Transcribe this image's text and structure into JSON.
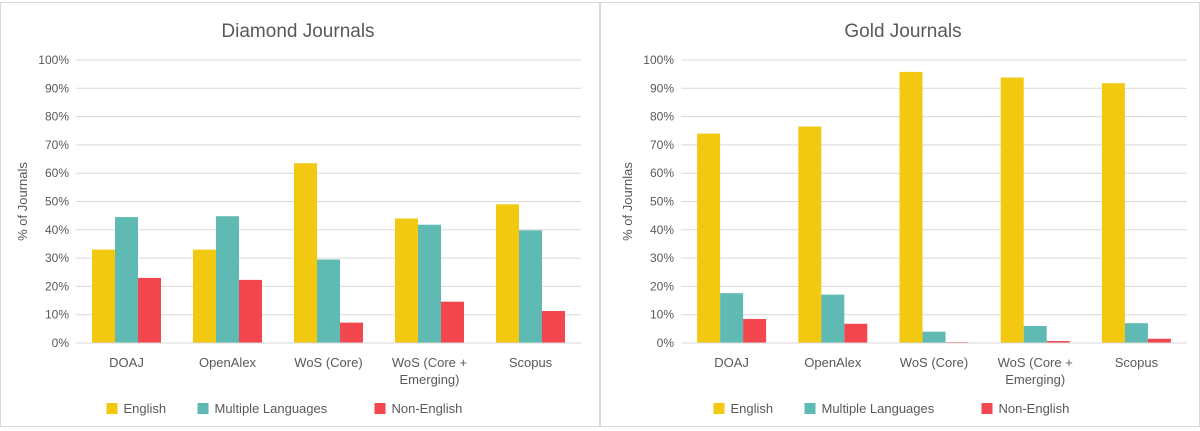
{
  "colors": {
    "english": "#f2c811",
    "multiple": "#5fbab3",
    "nonenglish": "#f2474f",
    "grid": "#d9d9d9",
    "text": "#595959"
  },
  "chart_data": [
    {
      "type": "bar",
      "title": "Diamond Journals",
      "ylabel": "% of Journals",
      "ylim": [
        0,
        100
      ],
      "yticks": [
        "0%",
        "10%",
        "20%",
        "30%",
        "40%",
        "50%",
        "60%",
        "70%",
        "80%",
        "90%",
        "100%"
      ],
      "categories": [
        [
          "DOAJ"
        ],
        [
          "OpenAlex"
        ],
        [
          "WoS (Core)"
        ],
        [
          "WoS (Core +",
          "Emerging)"
        ],
        [
          "Scopus"
        ]
      ],
      "series": [
        {
          "name": "English",
          "color": "#f2c811",
          "values": [
            33,
            33,
            63.5,
            44,
            49
          ]
        },
        {
          "name": "Multiple Languages",
          "color": "#5fbab3",
          "values": [
            44.5,
            44.8,
            29.5,
            41.8,
            39.8
          ]
        },
        {
          "name": "Non-English",
          "color": "#f2474f",
          "values": [
            23,
            22.3,
            7.2,
            14.6,
            11.3
          ]
        }
      ],
      "grid": true,
      "legend": "bottom"
    },
    {
      "type": "bar",
      "title": "Gold Journals",
      "ylabel": "% of Journlas",
      "ylim": [
        0,
        100
      ],
      "yticks": [
        "0%",
        "10%",
        "20%",
        "30%",
        "40%",
        "50%",
        "60%",
        "70%",
        "80%",
        "90%",
        "100%"
      ],
      "categories": [
        [
          "DOAJ"
        ],
        [
          "OpenAlex"
        ],
        [
          "WoS (Core)"
        ],
        [
          "WoS (Core +",
          "Emerging)"
        ],
        [
          "Scopus"
        ]
      ],
      "series": [
        {
          "name": "English",
          "color": "#f2c811",
          "values": [
            74,
            76.5,
            95.8,
            93.8,
            91.8
          ]
        },
        {
          "name": "Multiple Languages",
          "color": "#5fbab3",
          "values": [
            17.6,
            17.1,
            4,
            6,
            7
          ]
        },
        {
          "name": "Non-English",
          "color": "#f2474f",
          "values": [
            8.5,
            6.8,
            0.3,
            0.7,
            1.5
          ]
        }
      ],
      "grid": true,
      "legend": "bottom"
    }
  ]
}
